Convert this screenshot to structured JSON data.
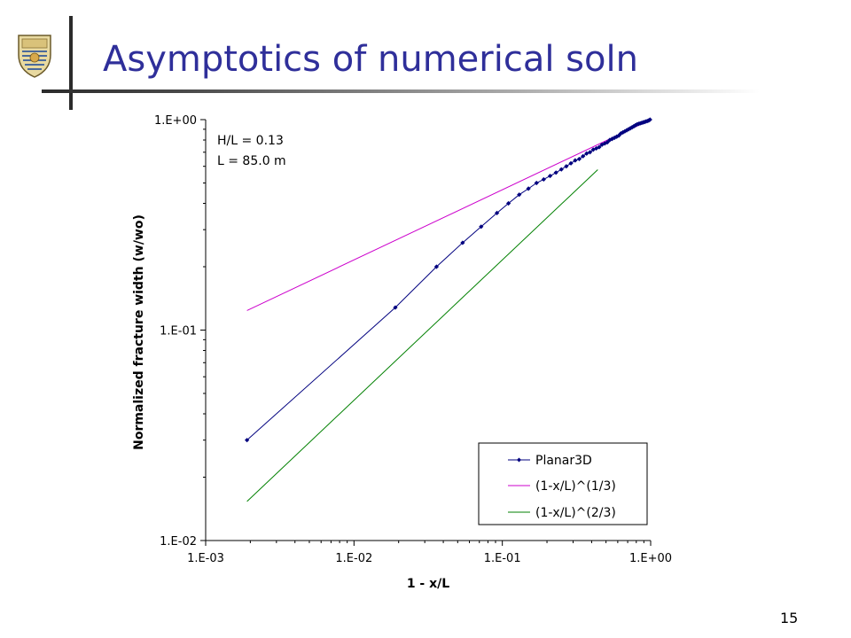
{
  "slide": {
    "title": "Asymptotics of numerical soln",
    "page_number": "15"
  },
  "colors": {
    "title": "#2f2f9a",
    "planar3d": "#00007f",
    "power_1_3": "#cc00cc",
    "power_2_3": "#008000"
  },
  "chart_data": {
    "type": "scatter",
    "x_scale": "log",
    "y_scale": "log",
    "xlim": [
      0.001,
      1
    ],
    "ylim": [
      0.01,
      1
    ],
    "xlabel": "1 - x/L",
    "ylabel": "Normalized fracture width (w/wo)",
    "x_ticks": [
      "1.E-03",
      "1.E-02",
      "1.E-01",
      "1.E+00"
    ],
    "y_ticks": [
      "1.E-02",
      "1.E-01",
      "1.E+00"
    ],
    "annotations": [
      "H/L = 0.13",
      "L = 85.0 m"
    ],
    "legend_position": "bottom-right",
    "series": [
      {
        "name": "Planar3D",
        "style": "line-markers",
        "x": [
          0.0019,
          0.019,
          0.036,
          0.054,
          0.072,
          0.092,
          0.11,
          0.13,
          0.15,
          0.17,
          0.19,
          0.21,
          0.23,
          0.25,
          0.27,
          0.29,
          0.31,
          0.33,
          0.35,
          0.37,
          0.39,
          0.41,
          0.43,
          0.45,
          0.47,
          0.49,
          0.51,
          0.53,
          0.55,
          0.57,
          0.59,
          0.61,
          0.63,
          0.65,
          0.67,
          0.69,
          0.71,
          0.73,
          0.75,
          0.77,
          0.79,
          0.81,
          0.83,
          0.85,
          0.87,
          0.89,
          0.91,
          0.93,
          0.95,
          0.97,
          0.99
        ],
        "y": [
          0.03,
          0.128,
          0.2,
          0.26,
          0.31,
          0.36,
          0.4,
          0.44,
          0.47,
          0.5,
          0.52,
          0.54,
          0.56,
          0.58,
          0.6,
          0.62,
          0.64,
          0.65,
          0.67,
          0.69,
          0.7,
          0.72,
          0.73,
          0.74,
          0.76,
          0.77,
          0.78,
          0.8,
          0.81,
          0.82,
          0.83,
          0.84,
          0.86,
          0.87,
          0.88,
          0.89,
          0.9,
          0.91,
          0.92,
          0.93,
          0.94,
          0.95,
          0.955,
          0.96,
          0.965,
          0.97,
          0.975,
          0.98,
          0.985,
          0.99,
          1.0
        ]
      },
      {
        "name": "(1-x/L)^(1/3)",
        "style": "line",
        "x": [
          0.0019,
          1.0
        ],
        "exponent": 0.3333
      },
      {
        "name": "(1-x/L)^(2/3)",
        "style": "line",
        "x": [
          0.0019,
          0.44
        ],
        "exponent": 0.6667
      }
    ]
  }
}
